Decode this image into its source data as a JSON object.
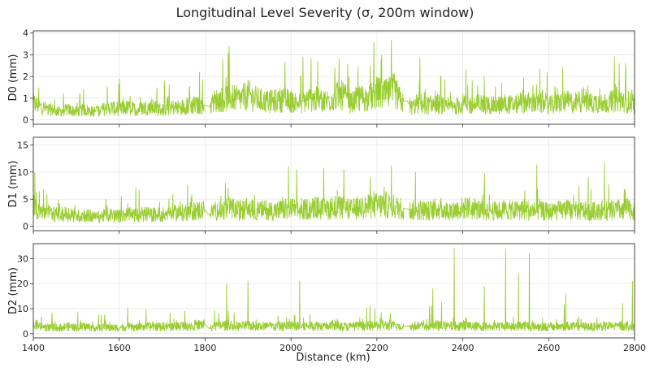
{
  "figure": {
    "title": "Longitudinal Level Severity (σ, 200m window)",
    "xlabel": "Distance (km)",
    "line_color": "#9ACD32"
  },
  "chart_data": [
    {
      "type": "line",
      "ylabel": "D0 (mm)",
      "xlim": [
        1400,
        2800
      ],
      "ylim": [
        -0.2,
        4.1
      ],
      "xticks": [
        1400,
        1600,
        1800,
        2000,
        2200,
        2400,
        2600,
        2800
      ],
      "xtick_labels": [
        "1400",
        "1600",
        "1800",
        "2000",
        "2200",
        "2400",
        "2600",
        "2800"
      ],
      "yticks": [
        0,
        1,
        2,
        3,
        4
      ],
      "ytick_labels": [
        "0",
        "1",
        "2",
        "3",
        "4"
      ],
      "grid": true,
      "series": [
        {
          "x": [
            1400,
            1420,
            1440,
            1460,
            1480,
            1500,
            1520,
            1540,
            1560,
            1580,
            1600,
            1620,
            1640,
            1660,
            1680,
            1700,
            1720,
            1740,
            1760,
            1780,
            1798,
            1810,
            1820,
            1840,
            1860,
            1880,
            1900,
            1920,
            1940,
            1960,
            1980,
            2000,
            2020,
            2040,
            2060,
            2080,
            2100,
            2120,
            2140,
            2160,
            2180,
            2200,
            2220,
            2240,
            2260,
            2270,
            2280,
            2300,
            2320,
            2340,
            2360,
            2380,
            2400,
            2420,
            2440,
            2460,
            2480,
            2500,
            2520,
            2540,
            2560,
            2580,
            2600,
            2620,
            2640,
            2660,
            2680,
            2700,
            2720,
            2740,
            2760,
            2780,
            2800
          ],
          "y": [
            0.8,
            0.6,
            0.5,
            0.4,
            0.5,
            0.4,
            0.5,
            0.4,
            0.5,
            0.6,
            0.5,
            0.6,
            0.5,
            0.6,
            0.6,
            0.5,
            0.6,
            0.6,
            0.7,
            0.7,
            0.7,
            0.6,
            0.9,
            1.0,
            1.1,
            1.0,
            1.2,
            1.0,
            0.9,
            0.9,
            1.0,
            0.9,
            0.8,
            1.0,
            1.0,
            0.9,
            1.1,
            1.2,
            0.8,
            1.1,
            1.0,
            1.3,
            1.2,
            1.4,
            0.8,
            0.9,
            0.6,
            0.8,
            0.7,
            0.8,
            0.6,
            0.6,
            0.8,
            0.7,
            0.8,
            0.7,
            0.7,
            0.8,
            0.7,
            0.9,
            0.8,
            0.8,
            0.7,
            0.8,
            0.9,
            0.8,
            1.0,
            0.8,
            0.9,
            0.8,
            1.0,
            0.9,
            0.8
          ]
        }
      ]
    },
    {
      "type": "line",
      "ylabel": "D1 (mm)",
      "xlim": [
        1400,
        2800
      ],
      "ylim": [
        -0.8,
        16.4
      ],
      "xticks": [
        1400,
        1600,
        1800,
        2000,
        2200,
        2400,
        2600,
        2800
      ],
      "xtick_labels": [
        "1400",
        "1600",
        "1800",
        "2000",
        "2200",
        "2400",
        "2600",
        "2800"
      ],
      "yticks": [
        0,
        5,
        10,
        15
      ],
      "ytick_labels": [
        "0",
        "5",
        "10",
        "15"
      ],
      "grid": true,
      "series": [
        {
          "x": [
            1400,
            1420,
            1440,
            1460,
            1480,
            1500,
            1520,
            1540,
            1560,
            1580,
            1600,
            1620,
            1640,
            1660,
            1680,
            1700,
            1720,
            1740,
            1760,
            1780,
            1798,
            1810,
            1820,
            1840,
            1860,
            1880,
            1900,
            1920,
            1940,
            1960,
            1980,
            2000,
            2020,
            2040,
            2060,
            2080,
            2100,
            2120,
            2140,
            2160,
            2180,
            2200,
            2220,
            2240,
            2260,
            2270,
            2280,
            2300,
            2320,
            2340,
            2360,
            2380,
            2400,
            2420,
            2440,
            2460,
            2480,
            2500,
            2520,
            2540,
            2560,
            2580,
            2600,
            2620,
            2640,
            2660,
            2680,
            2700,
            2720,
            2740,
            2760,
            2780,
            2800
          ],
          "y": [
            4.0,
            3.0,
            2.5,
            2.2,
            2.5,
            2.0,
            2.2,
            1.8,
            2.0,
            2.2,
            2.0,
            2.3,
            2.1,
            2.4,
            2.2,
            2.3,
            2.5,
            2.6,
            2.8,
            3.0,
            3.2,
            2.0,
            3.0,
            3.2,
            3.5,
            3.0,
            3.4,
            3.0,
            3.2,
            3.0,
            3.2,
            3.5,
            3.0,
            3.4,
            3.6,
            3.2,
            3.8,
            3.5,
            3.2,
            3.6,
            3.8,
            4.0,
            4.2,
            3.8,
            3.4,
            3.2,
            3.0,
            3.2,
            3.0,
            3.4,
            3.0,
            3.2,
            3.5,
            3.4,
            3.2,
            3.0,
            3.0,
            3.2,
            3.0,
            3.4,
            3.0,
            3.0,
            2.8,
            3.0,
            3.2,
            3.0,
            3.0,
            2.8,
            3.2,
            3.0,
            3.2,
            3.4,
            3.0
          ]
        }
      ]
    },
    {
      "type": "line",
      "ylabel": "D2 (mm)",
      "xlim": [
        1400,
        2800
      ],
      "ylim": [
        -1.7,
        36.0
      ],
      "xticks": [
        1400,
        1600,
        1800,
        2000,
        2200,
        2400,
        2600,
        2800
      ],
      "xtick_labels": [
        "1400",
        "1600",
        "1800",
        "2000",
        "2200",
        "2400",
        "2600",
        "2800"
      ],
      "yticks": [
        0,
        10,
        20,
        30
      ],
      "ytick_labels": [
        "0",
        "10",
        "20",
        "30"
      ],
      "grid": true,
      "series": [
        {
          "x": [
            1400,
            1420,
            1440,
            1460,
            1480,
            1500,
            1520,
            1540,
            1560,
            1580,
            1600,
            1620,
            1640,
            1660,
            1680,
            1700,
            1720,
            1740,
            1760,
            1780,
            1798,
            1810,
            1820,
            1840,
            1860,
            1880,
            1900,
            1920,
            1940,
            1960,
            1980,
            2000,
            2020,
            2040,
            2060,
            2080,
            2100,
            2120,
            2140,
            2160,
            2180,
            2200,
            2220,
            2240,
            2260,
            2270,
            2280,
            2300,
            2320,
            2340,
            2360,
            2380,
            2400,
            2420,
            2440,
            2460,
            2480,
            2500,
            2520,
            2540,
            2560,
            2580,
            2600,
            2620,
            2640,
            2660,
            2680,
            2700,
            2720,
            2740,
            2760,
            2780,
            2800
          ],
          "y": [
            4.0,
            3.0,
            2.5,
            2.5,
            3.0,
            2.5,
            3.0,
            2.5,
            2.5,
            2.5,
            2.5,
            2.8,
            2.5,
            3.0,
            2.8,
            3.0,
            3.0,
            3.2,
            3.5,
            3.5,
            4.0,
            2.0,
            3.0,
            3.5,
            3.5,
            3.0,
            3.5,
            3.0,
            3.2,
            3.0,
            3.0,
            3.5,
            3.0,
            3.2,
            3.5,
            3.0,
            3.5,
            3.0,
            3.0,
            3.2,
            3.2,
            3.5,
            3.5,
            3.2,
            3.0,
            3.0,
            3.0,
            3.2,
            3.0,
            3.5,
            3.0,
            3.2,
            3.5,
            3.2,
            3.0,
            3.0,
            3.0,
            3.2,
            3.0,
            3.5,
            3.0,
            3.0,
            2.8,
            3.0,
            3.2,
            3.0,
            3.0,
            2.8,
            3.2,
            3.0,
            3.2,
            3.5,
            3.0
          ]
        }
      ],
      "annotations": {
        "peaks_x": [
          1850,
          1900,
          2020,
          2330,
          2380,
          2450,
          2500,
          2530,
          2555,
          2640,
          2795
        ],
        "peaks_y": [
          20,
          21,
          21,
          18,
          34,
          19,
          34,
          24,
          32,
          16,
          21
        ]
      }
    }
  ]
}
